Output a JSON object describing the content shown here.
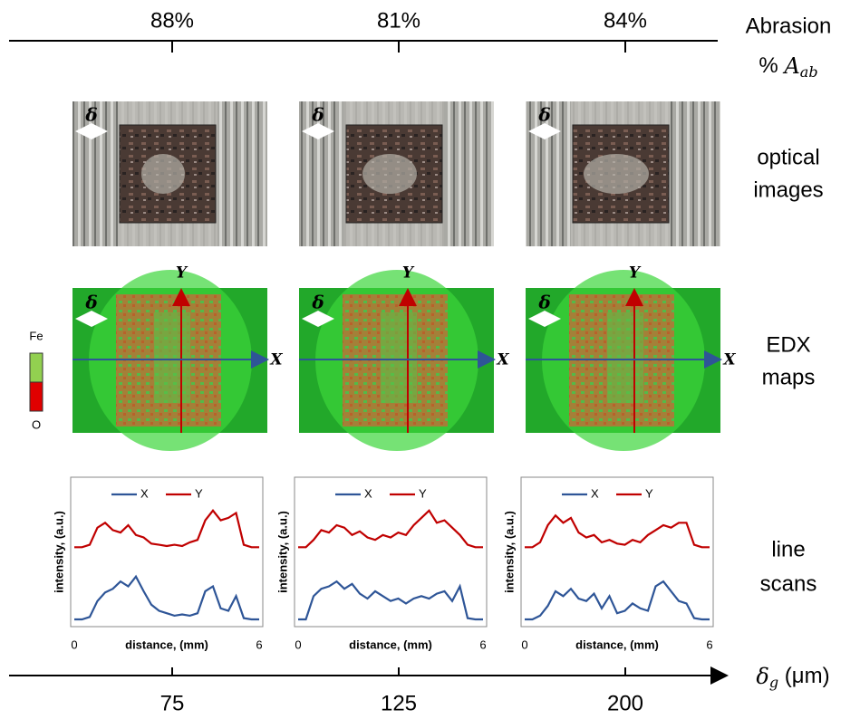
{
  "abrasion": {
    "label": "Abrasion",
    "percent": "%",
    "symbol": "A",
    "subscript": "ab",
    "values": [
      "88%",
      "81%",
      "84%"
    ]
  },
  "row_labels": {
    "optical": [
      "optical",
      "images"
    ],
    "edx": [
      "EDX",
      "maps"
    ],
    "scans": [
      "line",
      "scans"
    ]
  },
  "edx_legend": {
    "top": "Fe",
    "bottom": "O"
  },
  "image_marks": {
    "delta": "δ",
    "x_axis": "X",
    "y_axis": "Y"
  },
  "line_scans": {
    "xlabel": "distance, (mm)",
    "ylabel": "intensity, (a.u.)",
    "xlim": [
      0,
      6
    ],
    "xticks": [
      0,
      6
    ],
    "x": [
      0,
      0.25,
      0.5,
      0.75,
      1,
      1.25,
      1.5,
      1.75,
      2,
      2.25,
      2.5,
      2.75,
      3,
      3.25,
      3.5,
      3.75,
      4,
      4.25,
      4.5,
      4.75,
      5,
      5.25,
      5.5,
      5.75,
      6
    ],
    "panels": [
      {
        "series": [
          {
            "name": "X",
            "color": "#2e5597",
            "values": [
              0.03,
              0.03,
              0.05,
              0.18,
              0.25,
              0.28,
              0.34,
              0.3,
              0.38,
              0.26,
              0.15,
              0.1,
              0.08,
              0.06,
              0.07,
              0.06,
              0.08,
              0.26,
              0.3,
              0.12,
              0.1,
              0.22,
              0.04,
              0.03,
              0.03
            ]
          },
          {
            "name": "Y",
            "color": "#c00000",
            "values": [
              0.62,
              0.62,
              0.64,
              0.78,
              0.82,
              0.76,
              0.74,
              0.8,
              0.72,
              0.7,
              0.65,
              0.64,
              0.63,
              0.64,
              0.63,
              0.66,
              0.68,
              0.84,
              0.92,
              0.84,
              0.86,
              0.9,
              0.64,
              0.62,
              0.62
            ]
          }
        ]
      },
      {
        "series": [
          {
            "name": "X",
            "color": "#2e5597",
            "values": [
              0.03,
              0.03,
              0.22,
              0.28,
              0.3,
              0.34,
              0.28,
              0.32,
              0.24,
              0.2,
              0.26,
              0.22,
              0.18,
              0.2,
              0.16,
              0.2,
              0.22,
              0.2,
              0.24,
              0.26,
              0.18,
              0.3,
              0.04,
              0.03,
              0.03
            ]
          },
          {
            "name": "Y",
            "color": "#c00000",
            "values": [
              0.62,
              0.62,
              0.68,
              0.76,
              0.74,
              0.8,
              0.78,
              0.72,
              0.75,
              0.7,
              0.68,
              0.72,
              0.7,
              0.74,
              0.72,
              0.8,
              0.86,
              0.92,
              0.82,
              0.84,
              0.78,
              0.72,
              0.64,
              0.62,
              0.62
            ]
          }
        ]
      },
      {
        "series": [
          {
            "name": "X",
            "color": "#2e5597",
            "values": [
              0.03,
              0.03,
              0.06,
              0.14,
              0.26,
              0.22,
              0.28,
              0.2,
              0.18,
              0.24,
              0.12,
              0.22,
              0.08,
              0.1,
              0.16,
              0.12,
              0.1,
              0.3,
              0.34,
              0.26,
              0.18,
              0.16,
              0.04,
              0.03,
              0.03
            ]
          },
          {
            "name": "Y",
            "color": "#c00000",
            "values": [
              0.62,
              0.62,
              0.66,
              0.8,
              0.88,
              0.82,
              0.86,
              0.74,
              0.7,
              0.72,
              0.66,
              0.68,
              0.65,
              0.64,
              0.68,
              0.66,
              0.72,
              0.76,
              0.8,
              0.78,
              0.82,
              0.82,
              0.64,
              0.62,
              0.62
            ]
          }
        ]
      }
    ]
  },
  "gap_axis": {
    "symbol": "δ",
    "subscript": "g",
    "unit": "(μm)",
    "ticks": [
      "75",
      "125",
      "200"
    ]
  }
}
